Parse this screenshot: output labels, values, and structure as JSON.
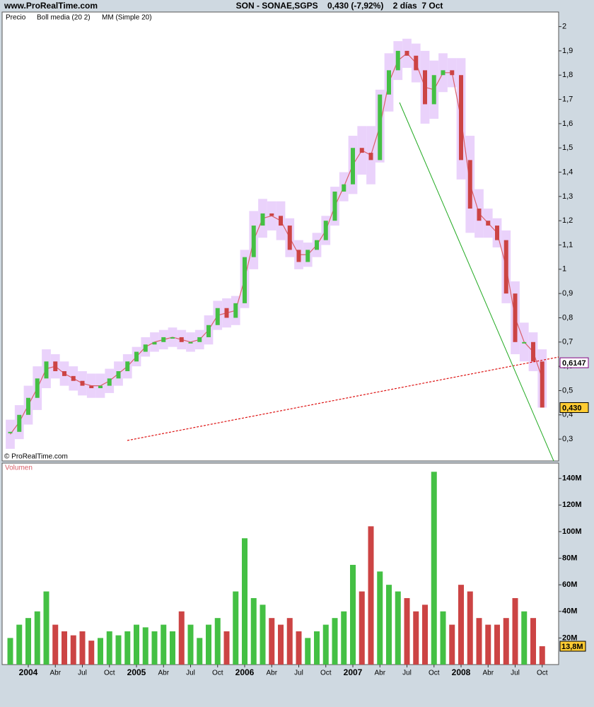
{
  "chart_data": {
    "type": "candlestick",
    "site": "www.ProRealTime.com",
    "title": "SON - SONAE,SGPS    0,430 (-7,92%)    2 días  7 Oct",
    "copyright": "© ProRealTime.com",
    "up_color": "#44c044",
    "down_color": "#cc4444",
    "x": [
      "2003-11",
      "2003-12",
      "2004-01",
      "2004-02",
      "2004-03",
      "2004-04",
      "2004-05",
      "2004-06",
      "2004-07",
      "2004-08",
      "2004-09",
      "2004-10",
      "2004-11",
      "2004-12",
      "2005-01",
      "2005-02",
      "2005-03",
      "2005-04",
      "2005-05",
      "2005-06",
      "2005-07",
      "2005-08",
      "2005-09",
      "2005-10",
      "2005-11",
      "2005-12",
      "2006-01",
      "2006-02",
      "2006-03",
      "2006-04",
      "2006-05",
      "2006-06",
      "2006-07",
      "2006-08",
      "2006-09",
      "2006-10",
      "2006-11",
      "2006-12",
      "2007-01",
      "2007-02",
      "2007-03",
      "2007-04",
      "2007-05",
      "2007-06",
      "2007-07",
      "2007-08",
      "2007-09",
      "2007-10",
      "2007-11",
      "2007-12",
      "2008-01",
      "2008-02",
      "2008-03",
      "2008-04",
      "2008-05",
      "2008-06",
      "2008-07",
      "2008-08",
      "2008-09",
      "2008-10"
    ],
    "xticks": [
      {
        "value": "2004-01",
        "label": "2004"
      },
      {
        "value": "2004-04",
        "label": "Abr"
      },
      {
        "value": "2004-07",
        "label": "Jul"
      },
      {
        "value": "2004-10",
        "label": "Oct"
      },
      {
        "value": "2005-01",
        "label": "2005"
      },
      {
        "value": "2005-04",
        "label": "Abr"
      },
      {
        "value": "2005-07",
        "label": "Jul"
      },
      {
        "value": "2005-10",
        "label": "Oct"
      },
      {
        "value": "2006-01",
        "label": "2006"
      },
      {
        "value": "2006-04",
        "label": "Abr"
      },
      {
        "value": "2006-07",
        "label": "Jul"
      },
      {
        "value": "2006-10",
        "label": "Oct"
      },
      {
        "value": "2007-01",
        "label": "2007"
      },
      {
        "value": "2007-04",
        "label": "Abr"
      },
      {
        "value": "2007-07",
        "label": "Jul"
      },
      {
        "value": "2007-10",
        "label": "Oct"
      },
      {
        "value": "2008-01",
        "label": "2008"
      },
      {
        "value": "2008-04",
        "label": "Abr"
      },
      {
        "value": "2008-07",
        "label": "Jul"
      },
      {
        "value": "2008-10",
        "label": "Oct"
      }
    ],
    "ylim": [
      0.21,
      2.06
    ],
    "yticks": [
      {
        "value": 0.3,
        "label": "0,3"
      },
      {
        "value": 0.4,
        "label": "0,4"
      },
      {
        "value": 0.5,
        "label": "0,5"
      },
      {
        "value": 0.6,
        "label": "0,6"
      },
      {
        "value": 0.7,
        "label": "0,7"
      },
      {
        "value": 0.8,
        "label": "0,8"
      },
      {
        "value": 0.9,
        "label": "0,9"
      },
      1,
      {
        "value": 1.1,
        "label": "1,1"
      },
      {
        "value": 1.2,
        "label": "1,2"
      },
      {
        "value": 1.3,
        "label": "1,3"
      },
      {
        "value": 1.4,
        "label": "1,4"
      },
      {
        "value": 1.5,
        "label": "1,5"
      },
      {
        "value": 1.6,
        "label": "1,6"
      },
      {
        "value": 1.7,
        "label": "1,7"
      },
      {
        "value": 1.8,
        "label": "1,8"
      },
      {
        "value": 1.9,
        "label": "1,9"
      },
      2
    ],
    "series": [
      {
        "name": "Precio",
        "color": "#000000",
        "values": [
          0.33,
          0.4,
          0.47,
          0.55,
          0.62,
          0.58,
          0.56,
          0.54,
          0.52,
          0.51,
          0.52,
          0.55,
          0.58,
          0.62,
          0.66,
          0.69,
          0.7,
          0.72,
          0.72,
          0.7,
          0.7,
          0.72,
          0.77,
          0.84,
          0.8,
          0.86,
          1.05,
          1.18,
          1.23,
          1.22,
          1.18,
          1.08,
          1.03,
          1.08,
          1.12,
          1.2,
          1.32,
          1.35,
          1.5,
          1.48,
          1.45,
          1.72,
          1.82,
          1.9,
          1.88,
          1.82,
          1.68,
          1.8,
          1.82,
          1.8,
          1.45,
          1.25,
          1.2,
          1.18,
          1.12,
          0.9,
          0.7,
          0.7,
          0.62,
          0.43
        ]
      },
      {
        "name": "Boll media (20 2)",
        "color": "#9900cc",
        "fill": "#ead2fb",
        "upper": [
          0.38,
          0.44,
          0.52,
          0.6,
          0.67,
          0.65,
          0.62,
          0.6,
          0.58,
          0.57,
          0.57,
          0.59,
          0.62,
          0.65,
          0.68,
          0.72,
          0.74,
          0.75,
          0.76,
          0.75,
          0.74,
          0.75,
          0.81,
          0.87,
          0.88,
          0.89,
          1.08,
          1.24,
          1.29,
          1.28,
          1.28,
          1.21,
          1.12,
          1.11,
          1.15,
          1.22,
          1.34,
          1.4,
          1.55,
          1.59,
          1.59,
          1.74,
          1.89,
          1.94,
          1.95,
          1.93,
          1.9,
          1.86,
          1.89,
          1.87,
          1.87,
          1.55,
          1.33,
          1.25,
          1.21,
          1.16,
          0.95,
          0.78,
          0.74,
          0.67
        ],
        "lower": [
          0.26,
          0.3,
          0.36,
          0.42,
          0.51,
          0.55,
          0.52,
          0.5,
          0.48,
          0.47,
          0.47,
          0.49,
          0.52,
          0.55,
          0.6,
          0.64,
          0.66,
          0.67,
          0.68,
          0.67,
          0.66,
          0.67,
          0.69,
          0.75,
          0.76,
          0.77,
          0.84,
          1.0,
          1.13,
          1.16,
          1.12,
          1.05,
          1.0,
          1.01,
          1.05,
          1.1,
          1.18,
          1.28,
          1.31,
          1.39,
          1.35,
          1.44,
          1.65,
          1.78,
          1.83,
          1.77,
          1.6,
          1.62,
          1.73,
          1.75,
          1.37,
          1.15,
          1.13,
          1.13,
          1.09,
          0.86,
          0.65,
          0.62,
          0.58,
          0.43
        ]
      },
      {
        "name": "MM (Simple 20)",
        "color": "#d9606a",
        "values": [
          0.32,
          0.37,
          0.44,
          0.51,
          0.59,
          0.6,
          0.57,
          0.55,
          0.53,
          0.52,
          0.52,
          0.54,
          0.57,
          0.6,
          0.64,
          0.68,
          0.7,
          0.71,
          0.72,
          0.71,
          0.7,
          0.71,
          0.75,
          0.81,
          0.82,
          0.83,
          0.96,
          1.12,
          1.21,
          1.22,
          1.2,
          1.13,
          1.06,
          1.06,
          1.1,
          1.16,
          1.26,
          1.34,
          1.43,
          1.49,
          1.47,
          1.59,
          1.77,
          1.86,
          1.89,
          1.85,
          1.75,
          1.74,
          1.81,
          1.81,
          1.62,
          1.35,
          1.23,
          1.19,
          1.15,
          1.01,
          0.8,
          0.7,
          0.66,
          0.55
        ]
      }
    ],
    "price_labels": [
      {
        "value": 0.6147,
        "label": "0,6147",
        "fill": "#ffffff",
        "color": "#800080"
      },
      {
        "value": 0.43,
        "label": "0,430",
        "fill": "#ffcc33",
        "color": "#000000"
      }
    ],
    "volume": {
      "label": "Volumen",
      "ylim": [
        0,
        151
      ],
      "yticks": [
        {
          "value": 20,
          "label": "20M"
        },
        {
          "value": 40,
          "label": "40M"
        },
        {
          "value": 60,
          "label": "60M"
        },
        {
          "value": 80,
          "label": "80M"
        },
        {
          "value": 100,
          "label": "100M"
        },
        {
          "value": 120,
          "label": "120M"
        },
        {
          "value": 140,
          "label": "140M"
        }
      ],
      "values": [
        20,
        30,
        35,
        40,
        55,
        30,
        25,
        22,
        25,
        18,
        20,
        25,
        22,
        25,
        30,
        28,
        25,
        30,
        25,
        40,
        30,
        20,
        30,
        35,
        25,
        55,
        95,
        50,
        45,
        35,
        30,
        35,
        25,
        20,
        25,
        30,
        35,
        40,
        75,
        55,
        104,
        70,
        60,
        55,
        50,
        40,
        45,
        145,
        40,
        30,
        60,
        55,
        35,
        30,
        30,
        35,
        50,
        40,
        35,
        13.8
      ],
      "last_label": {
        "value": 13.8,
        "label": "13,8M",
        "fill": "#ffcc33"
      }
    }
  }
}
